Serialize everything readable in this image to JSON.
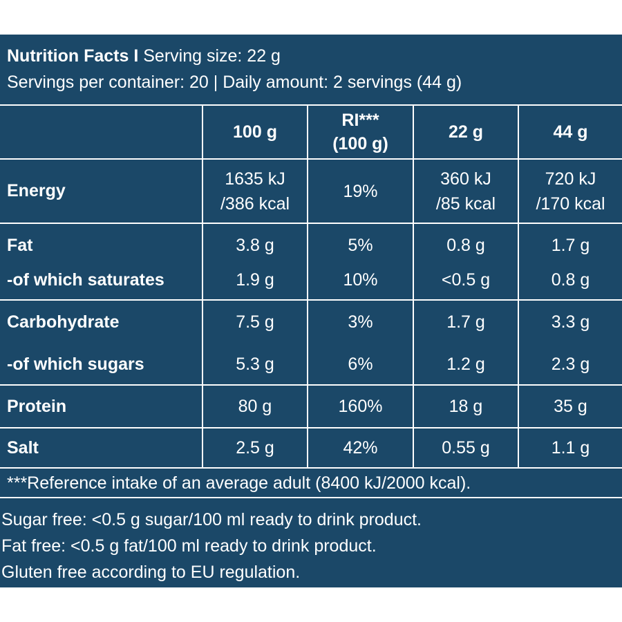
{
  "header": {
    "title_bold": "Nutrition Facts I",
    "serving_size": " Serving size: 22 g",
    "line2": "Servings per container: 20 | Daily amount: 2 servings (44 g)"
  },
  "table": {
    "columns": [
      {
        "line1": "100 g",
        "line2": ""
      },
      {
        "line1": "RI***",
        "line2": "(100 g)"
      },
      {
        "line1": "22 g",
        "line2": ""
      },
      {
        "line1": "44 g",
        "line2": ""
      }
    ],
    "rows": [
      {
        "label": "Energy",
        "values": [
          [
            "1635 kJ",
            "/386 kcal"
          ],
          [
            "19%"
          ],
          [
            "360 kJ",
            "/85 kcal"
          ],
          [
            "720 kJ",
            "/170 kcal"
          ]
        ]
      },
      {
        "label": "Fat",
        "values": [
          [
            "3.8 g"
          ],
          [
            "5%"
          ],
          [
            "0.8 g"
          ],
          [
            "1.7 g"
          ]
        ]
      },
      {
        "label": "-of which saturates",
        "values": [
          [
            "1.9 g"
          ],
          [
            "10%"
          ],
          [
            "<0.5 g"
          ],
          [
            "0.8 g"
          ]
        ]
      },
      {
        "label": "Carbohydrate",
        "values": [
          [
            "7.5 g"
          ],
          [
            "3%"
          ],
          [
            "1.7 g"
          ],
          [
            "3.3 g"
          ]
        ]
      },
      {
        "label": "-of which sugars",
        "values": [
          [
            "5.3 g"
          ],
          [
            "6%"
          ],
          [
            "1.2 g"
          ],
          [
            "2.3 g"
          ]
        ]
      },
      {
        "label": "Protein",
        "values": [
          [
            "80 g"
          ],
          [
            "160%"
          ],
          [
            "18 g"
          ],
          [
            "35 g"
          ]
        ]
      },
      {
        "label": "Salt",
        "values": [
          [
            "2.5 g"
          ],
          [
            "42%"
          ],
          [
            "0.55 g"
          ],
          [
            "1.1 g"
          ]
        ]
      }
    ]
  },
  "footnote": "***Reference intake of an average adult (8400 kJ/2000 kcal).",
  "notes": [
    "Sugar free: <0.5 g sugar/100 ml ready to drink product.",
    "Fat free: <0.5 g fat/100 ml ready to drink product.",
    "Gluten free according to EU regulation."
  ],
  "colors": {
    "panel_bg": "#1b4868",
    "text": "#ffffff",
    "lines": "#ffffff"
  }
}
